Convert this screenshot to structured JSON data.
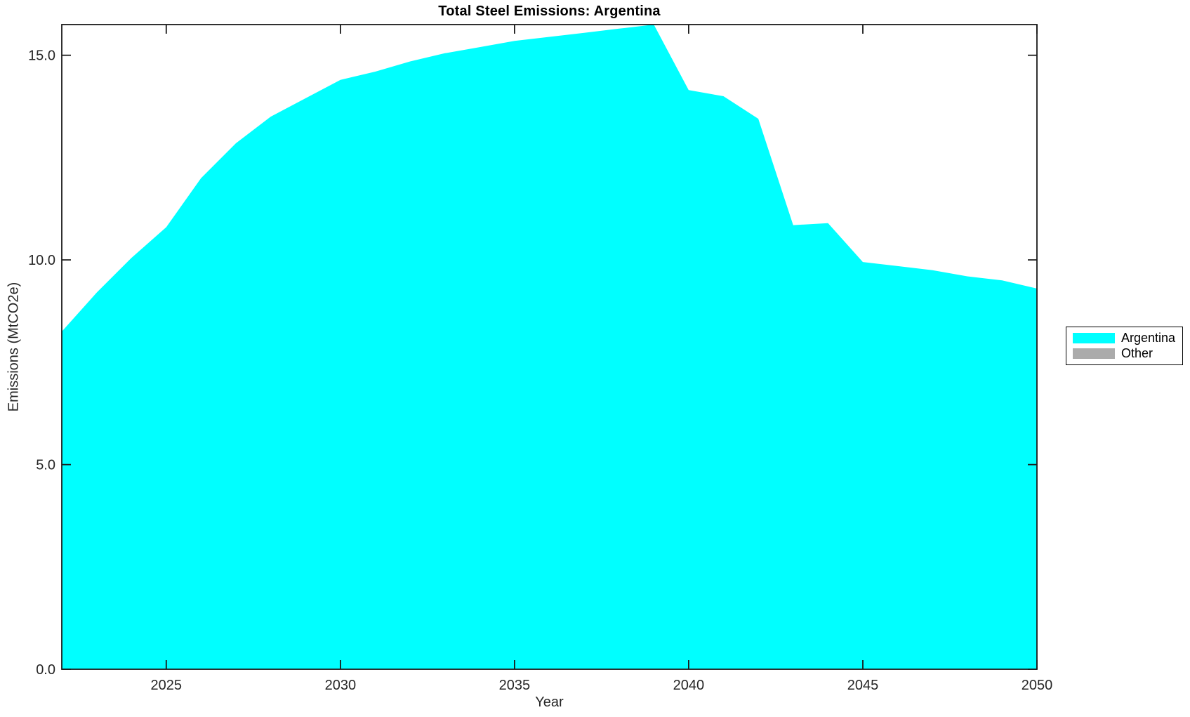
{
  "title": "Total Steel Emissions: Argentina",
  "axes": {
    "xlabel": "Year",
    "ylabel": "Emissions (MtCO2e)"
  },
  "legend": {
    "position": "right-outside",
    "items": [
      {
        "label": "Argentina",
        "color": "#00FFFF"
      },
      {
        "label": "Other",
        "color": "#ABABAB"
      }
    ]
  },
  "colors": {
    "area_fill": "#00FFFF",
    "other_fill": "#ABABAB",
    "frame": "#1a1a1a",
    "tick_label": "#262626",
    "background": "#ffffff"
  },
  "chart_data": {
    "type": "area",
    "title": "Total Steel Emissions: Argentina",
    "xlabel": "Year",
    "ylabel": "Emissions (MtCO2e)",
    "grid": false,
    "legend_position": "right-outside",
    "xlim": [
      2022,
      2050
    ],
    "ylim": [
      0,
      15.75
    ],
    "x_ticks": {
      "values": [
        2025,
        2030,
        2035,
        2040,
        2045,
        2050
      ],
      "labels": [
        "2025",
        "2030",
        "2035",
        "2040",
        "2045",
        "2050"
      ]
    },
    "y_ticks": {
      "values": [
        0,
        5,
        10,
        15
      ],
      "labels": [
        "0.0",
        "5.0",
        "10.0",
        "15.0"
      ]
    },
    "x": [
      2022,
      2023,
      2024,
      2025,
      2026,
      2027,
      2028,
      2029,
      2030,
      2031,
      2032,
      2033,
      2034,
      2035,
      2036,
      2037,
      2038,
      2039,
      2040,
      2041,
      2042,
      2043,
      2044,
      2045,
      2046,
      2047,
      2048,
      2049,
      2050
    ],
    "series": [
      {
        "name": "Argentina",
        "color": "#00FFFF",
        "values": [
          8.25,
          9.2,
          10.05,
          10.8,
          12.0,
          12.85,
          13.5,
          13.95,
          14.4,
          14.6,
          14.85,
          15.05,
          15.2,
          15.35,
          15.45,
          15.55,
          15.65,
          15.75,
          14.15,
          14.0,
          13.45,
          10.85,
          10.9,
          9.95,
          9.85,
          9.75,
          9.6,
          9.5,
          9.3
        ]
      },
      {
        "name": "Other",
        "color": "#ABABAB",
        "values": [
          0,
          0,
          0,
          0,
          0,
          0,
          0,
          0,
          0,
          0,
          0,
          0,
          0,
          0,
          0,
          0,
          0,
          0,
          0,
          0,
          0,
          0,
          0,
          0,
          0,
          0,
          0,
          0,
          0
        ]
      }
    ]
  }
}
